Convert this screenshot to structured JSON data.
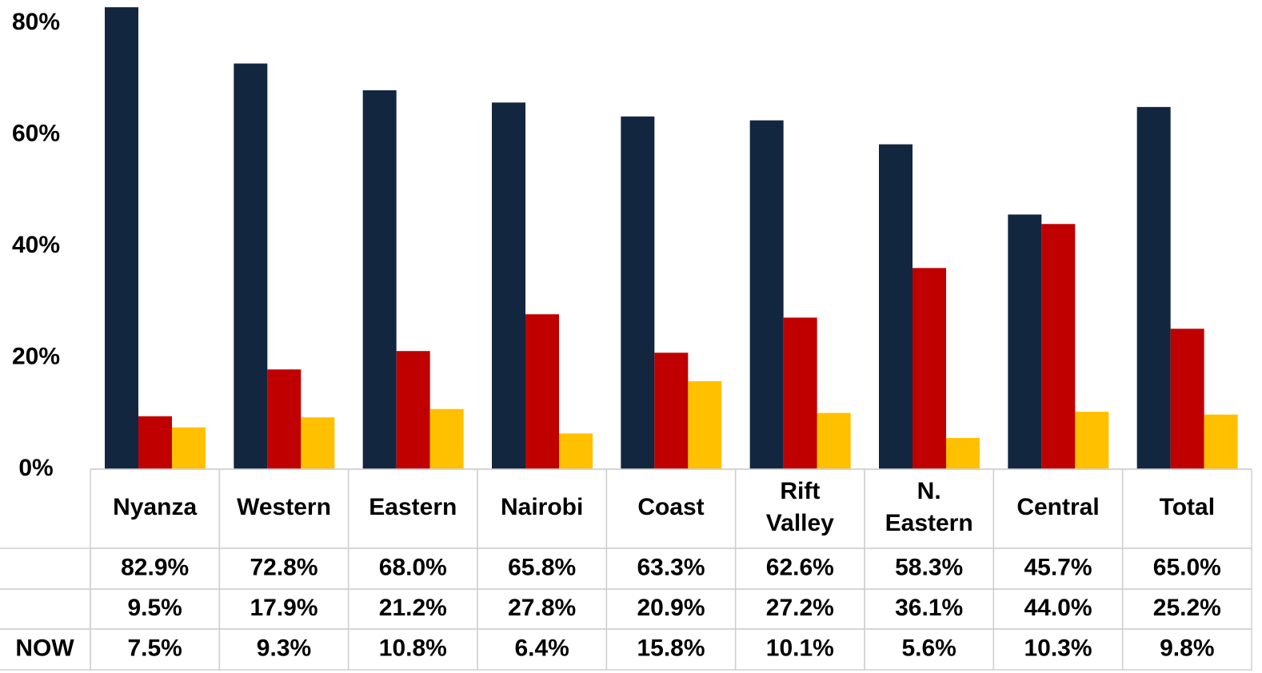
{
  "chart_data": {
    "type": "bar",
    "categories": [
      "Nyanza",
      "Western",
      "Eastern",
      "Nairobi",
      "Coast",
      "Rift Valley",
      "N. Eastern",
      "Central",
      "Total"
    ],
    "series": [
      {
        "color": "#12263f",
        "values": [
          82.9,
          72.8,
          68.0,
          65.8,
          63.3,
          62.6,
          58.3,
          45.7,
          65.0
        ],
        "value_labels": [
          "82.9%",
          "72.8%",
          "68.0%",
          "65.8%",
          "63.3%",
          "62.6%",
          "58.3%",
          "45.7%",
          "65.0%"
        ]
      },
      {
        "color": "#c00000",
        "values": [
          9.5,
          17.9,
          21.2,
          27.8,
          20.9,
          27.2,
          36.1,
          44.0,
          25.2
        ],
        "value_labels": [
          "9.5%",
          "17.9%",
          "21.2%",
          "27.8%",
          "20.9%",
          "27.2%",
          "36.1%",
          "44.0%",
          "25.2%"
        ]
      },
      {
        "name": "NOW",
        "color": "#ffc000",
        "values": [
          7.5,
          9.3,
          10.8,
          6.4,
          15.8,
          10.1,
          5.6,
          10.3,
          9.8
        ],
        "value_labels": [
          "7.5%",
          "9.3%",
          "10.8%",
          "6.4%",
          "15.8%",
          "10.1%",
          "5.6%",
          "10.3%",
          "9.8%"
        ]
      }
    ],
    "ylim": [
      0,
      84.2
    ],
    "yticks": [
      {
        "value": 0,
        "label": "0%"
      },
      {
        "value": 20,
        "label": "20%"
      },
      {
        "value": 40,
        "label": "40%"
      },
      {
        "value": 60,
        "label": "60%"
      },
      {
        "value": 80,
        "label": "80%"
      }
    ]
  }
}
